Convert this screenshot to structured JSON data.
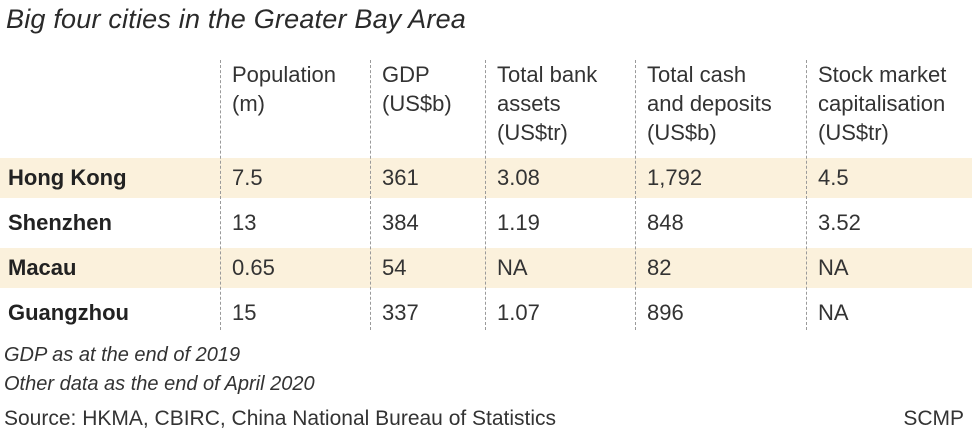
{
  "chart_data": {
    "type": "table",
    "title": "Big four cities in the Greater Bay Area",
    "columns": [
      "Population\n(m)",
      "GDP\n(US$b)",
      "Total bank\nassets\n(US$tr)",
      "Total cash\nand deposits\n(US$b)",
      "Stock market\ncapitalisation\n(US$tr)"
    ],
    "rows": [
      {
        "city": "Hong Kong",
        "values": [
          "7.5",
          "361",
          "3.08",
          "1,792",
          "4.5"
        ],
        "highlight": true
      },
      {
        "city": "Shenzhen",
        "values": [
          "13",
          "384",
          "1.19",
          "848",
          "3.52"
        ],
        "highlight": false
      },
      {
        "city": "Macau",
        "values": [
          "0.65",
          "54",
          "NA",
          "82",
          "NA"
        ],
        "highlight": true
      },
      {
        "city": "Guangzhou",
        "values": [
          "15",
          "337",
          "1.07",
          "896",
          "NA"
        ],
        "highlight": false
      }
    ],
    "notes": [
      "GDP as at the end of 2019",
      "Other data as the end of April 2020"
    ],
    "source": "Source: HKMA, CBIRC, China National Bureau of Statistics",
    "credit": "SCMP"
  },
  "colors": {
    "highlight_row": "#fbf1dc",
    "divider": "#9a9a9a",
    "text": "#222222"
  }
}
